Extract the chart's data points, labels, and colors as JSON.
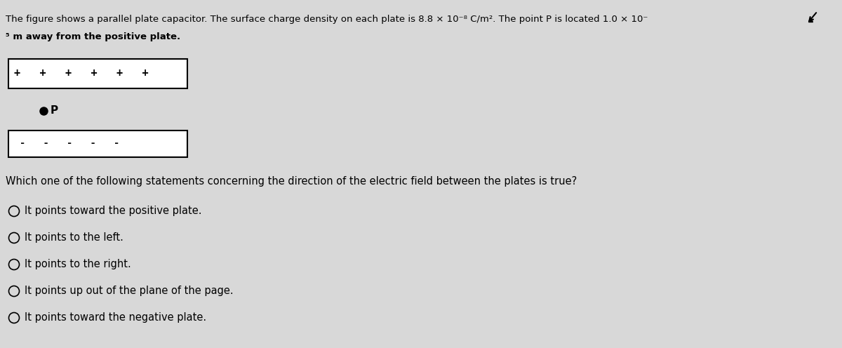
{
  "background_color": "#d8d8d8",
  "title_line1": "The figure shows a parallel plate capacitor. The surface charge density on each plate is 8.8 × 10⁻⁸ C/m². The point P is located 1.0 × 10⁻",
  "title_line2": "⁵ m away from the positive plate.",
  "positive_plate_label": "+ + + + + +",
  "negative_plate_label": "- - - - -",
  "point_label": "P",
  "question": "Which one of the following statements concerning the direction of the electric field between the plates is true?",
  "options": [
    "It points toward the positive plate.",
    "It points to the left.",
    "It points to the right.",
    "It points up out of the plane of the page.",
    "It points toward the negative plate."
  ],
  "plate_box_color": "#000000",
  "plate_fill_color": "#ffffff",
  "text_color": "#000000",
  "plate_sign_color_pos": "#000000",
  "plate_sign_color_neg": "#000000"
}
